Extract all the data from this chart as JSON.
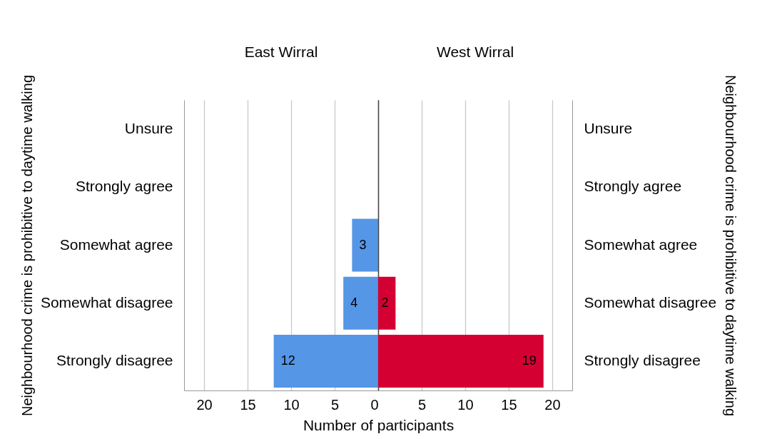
{
  "chart_data": [
    {
      "type": "bar",
      "orientation": "horizontal",
      "title": "East Wirral",
      "xlabel": "Number of participants",
      "ylabel": "Neighbourhood crime is prohibitive to daytime walking",
      "categories": [
        "Unsure",
        "Strongly agree",
        "Somewhat agree",
        "Somewhat disagree",
        "Strongly disagree"
      ],
      "series": [
        {
          "color": "#5596e6",
          "values": [
            0,
            0,
            3,
            4,
            12
          ],
          "value_labels": [
            null,
            null,
            "3",
            "4",
            "12"
          ]
        }
      ],
      "xlim": [
        22.3,
        0
      ],
      "xticks": [
        20,
        15,
        10,
        5,
        0
      ],
      "grid": "x"
    },
    {
      "type": "bar",
      "orientation": "horizontal",
      "title": "West Wirral",
      "ylabel": "Neighbourhood crime is prohibitive to daytime walking",
      "categories": [
        "Unsure",
        "Strongly agree",
        "Somewhat agree",
        "Somewhat disagree",
        "Strongly disagree"
      ],
      "series": [
        {
          "color": "#d50032",
          "values": [
            0,
            0,
            0,
            2,
            19
          ],
          "value_labels": [
            null,
            null,
            null,
            "2",
            "19"
          ]
        }
      ],
      "xlim": [
        0,
        22.3
      ],
      "xticks": [
        {
          "value": 0,
          "label": null
        },
        5,
        10,
        15,
        20
      ],
      "grid": "x"
    }
  ]
}
